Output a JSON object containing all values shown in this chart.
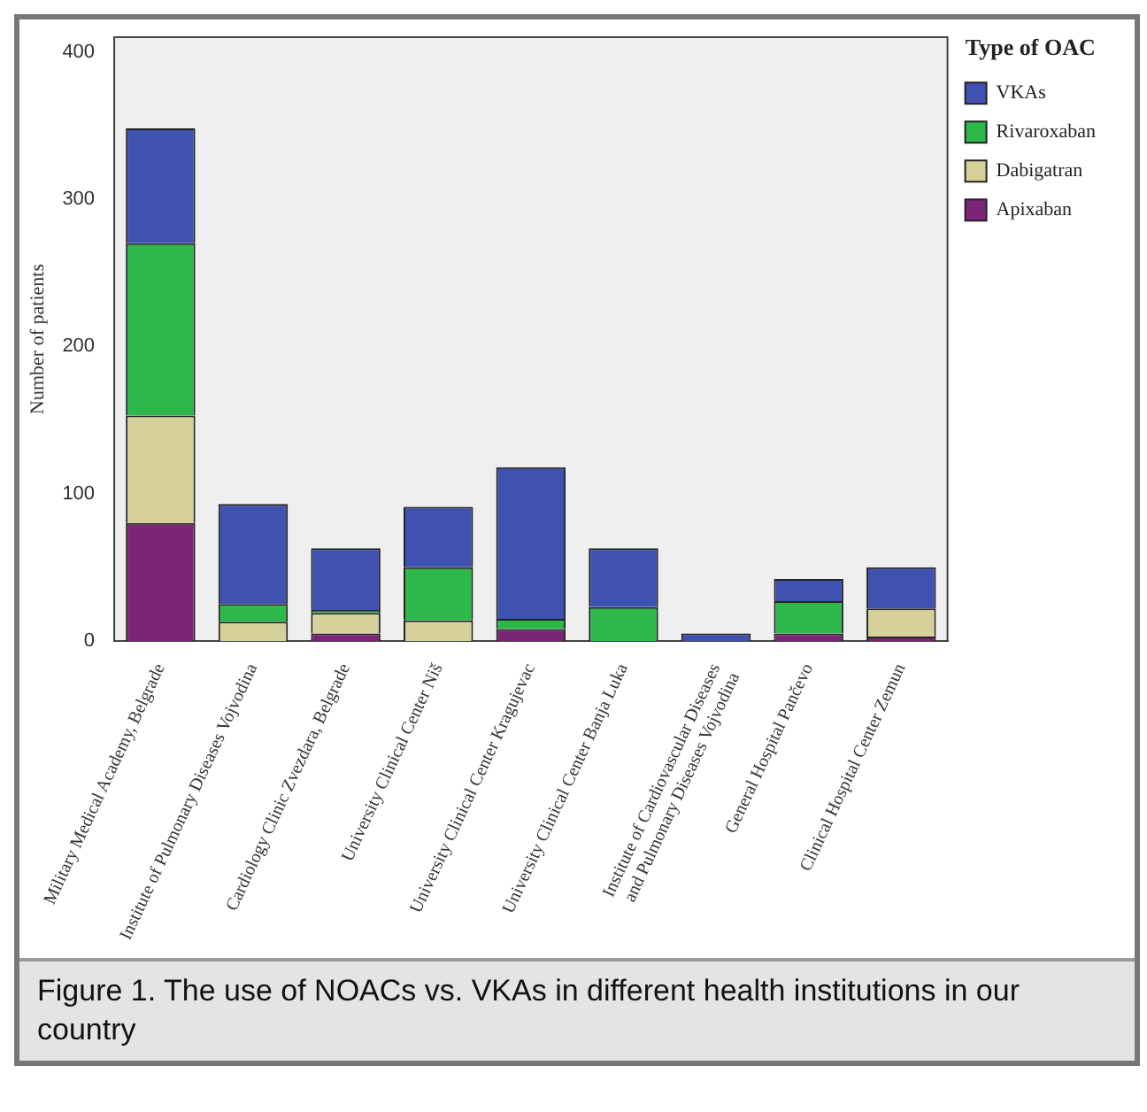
{
  "chart_data": {
    "type": "bar",
    "stacked": true,
    "ylabel": "Number of patients",
    "legend_title": "Type of OAC",
    "legend": "top right",
    "grid": false,
    "categories": [
      "Military Medical Academy, Belgrade",
      "Institute of Pulmonary Diseases Vojvodina",
      "Cardiology Clinic Zvezdara, Belgrade",
      "University Clinical Center Niš",
      "University Clinical Center Kragujevac",
      "University Clinical Center Banja Luka",
      "Institute of Cardiovascular Diseases and Pulmonary Diseases Vojvodina",
      "General Hospital Pančevo",
      "Clinical Hospital Center Zemun"
    ],
    "series": [
      {
        "name": "Apixaban",
        "color": "#7b2478",
        "values": [
          80,
          0,
          5,
          0,
          8,
          0,
          0,
          5,
          3
        ]
      },
      {
        "name": "Dabigatran",
        "color": "#d6d09a",
        "values": [
          73,
          13,
          14,
          14,
          0,
          0,
          0,
          0,
          19
        ]
      },
      {
        "name": "Rivaroxaban",
        "color": "#2db84a",
        "values": [
          117,
          12,
          2,
          36,
          7,
          23,
          0,
          22,
          0
        ]
      },
      {
        "name": "VKAs",
        "color": "#3f51b1",
        "values": [
          78,
          68,
          42,
          41,
          103,
          40,
          5,
          15,
          28
        ]
      }
    ],
    "ylim": [
      0,
      410
    ],
    "yticks": [
      0,
      100,
      200,
      300,
      400
    ],
    "annotations": [
      "Figure 1. The use of NOACs vs. VKAs in different health institutions in our country"
    ]
  }
}
